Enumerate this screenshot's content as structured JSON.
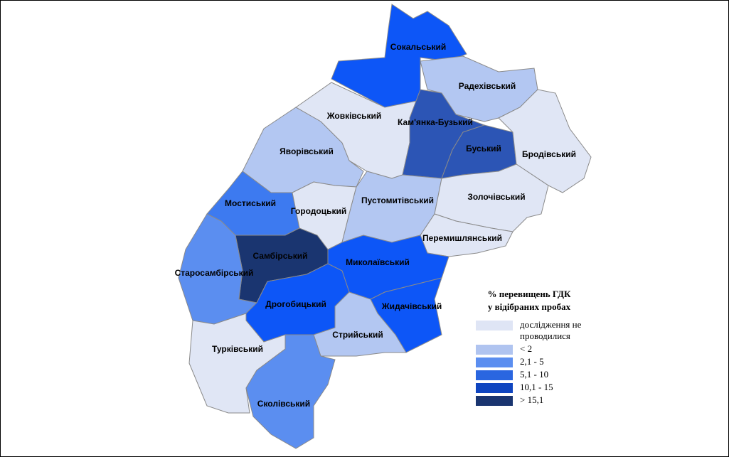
{
  "map": {
    "regions": [
      {
        "label": "Сокальський",
        "color": "#0d56f7"
      },
      {
        "label": "Радехівський",
        "color": "#b3c7f2"
      },
      {
        "label": "Жовківський",
        "color": "#e0e6f5"
      },
      {
        "label": "Кам'янка-Бузький",
        "color": "#2c55b5"
      },
      {
        "label": "Буський",
        "color": "#2c55b5"
      },
      {
        "label": "Бродівський",
        "color": "#e0e6f5"
      },
      {
        "label": "Яворівський",
        "color": "#b3c7f2"
      },
      {
        "label": "Мостиський",
        "color": "#3d7af0"
      },
      {
        "label": "Городоцький",
        "color": "#e0e6f5"
      },
      {
        "label": "Пустомитівський",
        "color": "#b3c7f2"
      },
      {
        "label": "Золочівський",
        "color": "#e0e6f5"
      },
      {
        "label": "Перемишлянський",
        "color": "#e0e6f5"
      },
      {
        "label": "Самбірський",
        "color": "#1a3570"
      },
      {
        "label": "Старосамбірський",
        "color": "#5b8ef0"
      },
      {
        "label": "Миколаївський",
        "color": "#0d56f7"
      },
      {
        "label": "Дрогобицький",
        "color": "#0d56f7"
      },
      {
        "label": "Жидачівський",
        "color": "#0d56f7"
      },
      {
        "label": "Стрийський",
        "color": "#b3c7f2"
      },
      {
        "label": "Турківський",
        "color": "#e0e6f5"
      },
      {
        "label": "Сколівський",
        "color": "#5b8ef0"
      }
    ],
    "legend": {
      "title": [
        "% перевищень ГДК",
        "у відібраних пробах"
      ],
      "items": [
        {
          "label": "дослідження не проводилися",
          "color": "#dfe5f5"
        },
        {
          "label": "< 2",
          "color": "#b0c4f0"
        },
        {
          "label": "2,1 - 5",
          "color": "#5b8ef0"
        },
        {
          "label": "5,1 - 10",
          "color": "#2a66e0"
        },
        {
          "label": "10,1 - 15",
          "color": "#0f45c0"
        },
        {
          "label": "> 15,1",
          "color": "#1a3570"
        }
      ]
    }
  }
}
